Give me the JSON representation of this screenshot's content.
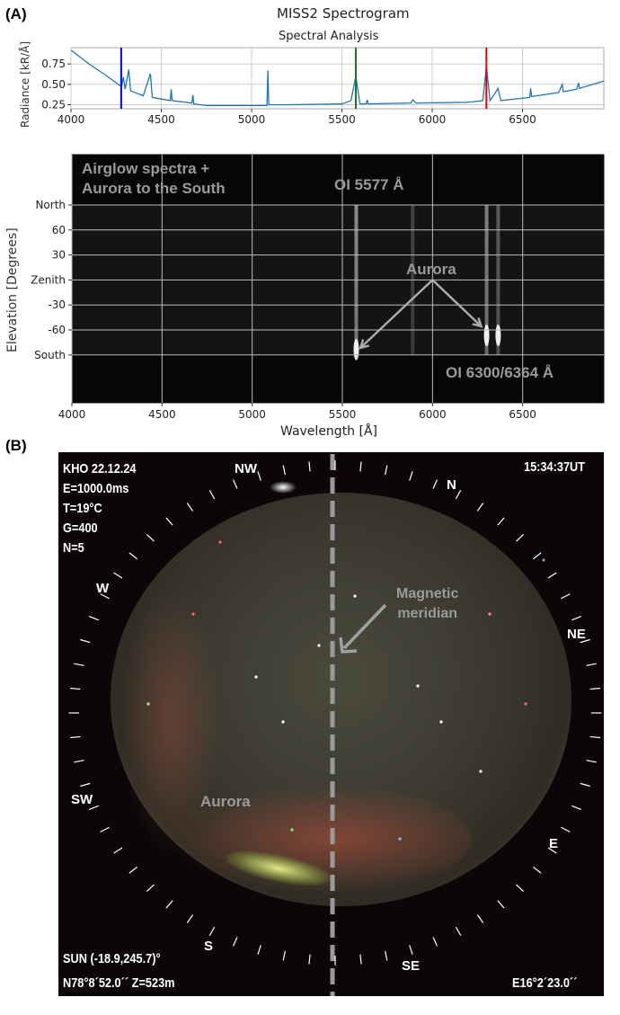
{
  "panel_a": {
    "label": "(A)"
  },
  "panel_b": {
    "label": "(B)"
  },
  "chart_data": [
    {
      "type": "line",
      "title": "MISS2 Spectrogram",
      "subtitle": "Spectral Analysis",
      "xlabel": "",
      "ylabel": "Radiance [kR/Å]",
      "xlim": [
        4000,
        6950
      ],
      "ylim": [
        0.2,
        0.95
      ],
      "xticks": [
        4000,
        4500,
        5000,
        5500,
        6000,
        6500
      ],
      "yticks": [
        0.25,
        0.5,
        0.75
      ],
      "ytick_labels": [
        "0.25",
        "0.50",
        "0.75"
      ],
      "grid": true,
      "line_color": "#1f77b4",
      "markers": [
        {
          "x": 4278,
          "color": "#0000ff"
        },
        {
          "x": 5577,
          "color": "#1a7a1a"
        },
        {
          "x": 6300,
          "color": "#e00000"
        }
      ],
      "series": [
        {
          "name": "spectrum",
          "x": [
            4000,
            4100,
            4200,
            4280,
            4290,
            4300,
            4320,
            4330,
            4400,
            4440,
            4450,
            4550,
            4555,
            4560,
            4670,
            4675,
            4680,
            4750,
            5000,
            5085,
            5090,
            5095,
            5200,
            5500,
            5550,
            5577,
            5600,
            5635,
            5640,
            5645,
            5880,
            5893,
            5910,
            6200,
            6280,
            6300,
            6320,
            6350,
            6364,
            6380,
            6500,
            6540,
            6545,
            6550,
            6700,
            6720,
            6725,
            6800,
            6810,
            6815,
            6950
          ],
          "y": [
            0.92,
            0.75,
            0.6,
            0.47,
            0.59,
            0.44,
            0.68,
            0.42,
            0.36,
            0.63,
            0.34,
            0.3,
            0.44,
            0.3,
            0.27,
            0.37,
            0.26,
            0.24,
            0.24,
            0.24,
            0.67,
            0.25,
            0.25,
            0.26,
            0.3,
            0.6,
            0.26,
            0.26,
            0.31,
            0.26,
            0.27,
            0.31,
            0.27,
            0.28,
            0.3,
            0.72,
            0.3,
            0.4,
            0.45,
            0.3,
            0.33,
            0.34,
            0.45,
            0.35,
            0.4,
            0.5,
            0.41,
            0.44,
            0.52,
            0.45,
            0.54
          ]
        }
      ]
    },
    {
      "type": "heatmap",
      "xlabel": "Wavelength [Å]",
      "ylabel": "Elevation [Degrees]",
      "xlim": [
        4000,
        6950
      ],
      "xticks": [
        4000,
        4500,
        5000,
        5500,
        6000,
        6500
      ],
      "yticks": [
        "North",
        "60",
        "30",
        "Zenith",
        "-30",
        "-60",
        "South"
      ],
      "emission_lines": [
        {
          "x": 5577,
          "brightness": 0.5,
          "aurora_peak_elevation": "South"
        },
        {
          "x": 5890,
          "brightness": 0.2,
          "aurora_peak_elevation": null
        },
        {
          "x": 6300,
          "brightness": 0.45,
          "aurora_peak_elevation": "-60"
        },
        {
          "x": 6364,
          "brightness": 0.3,
          "aurora_peak_elevation": "-60"
        }
      ],
      "annotations": {
        "top_left": [
          "Airglow spectra +",
          "Aurora to the South"
        ],
        "line_5577": "OI 5577 Å",
        "aurora": "Aurora",
        "line_6300": "OI 6300/6364 Å"
      }
    }
  ],
  "allsky": {
    "info_left": [
      "KHO 22.12.24",
      "E=1000.0ms",
      "T=19°C",
      "G=400",
      "N=5"
    ],
    "time": "15:34:37UT",
    "sun": "SUN (-18.9,245.7)°",
    "position": "N78°8´52.0´´ Z=523m",
    "longitude": "E16°2´23.0´´",
    "directions": {
      "nw": "NW",
      "n": "N",
      "ne": "NE",
      "e": "E",
      "se": "SE",
      "s": "S",
      "sw": "SW",
      "w": "W"
    },
    "meridian_label": [
      "Magnetic",
      "meridian"
    ],
    "aurora_label": "Aurora"
  }
}
